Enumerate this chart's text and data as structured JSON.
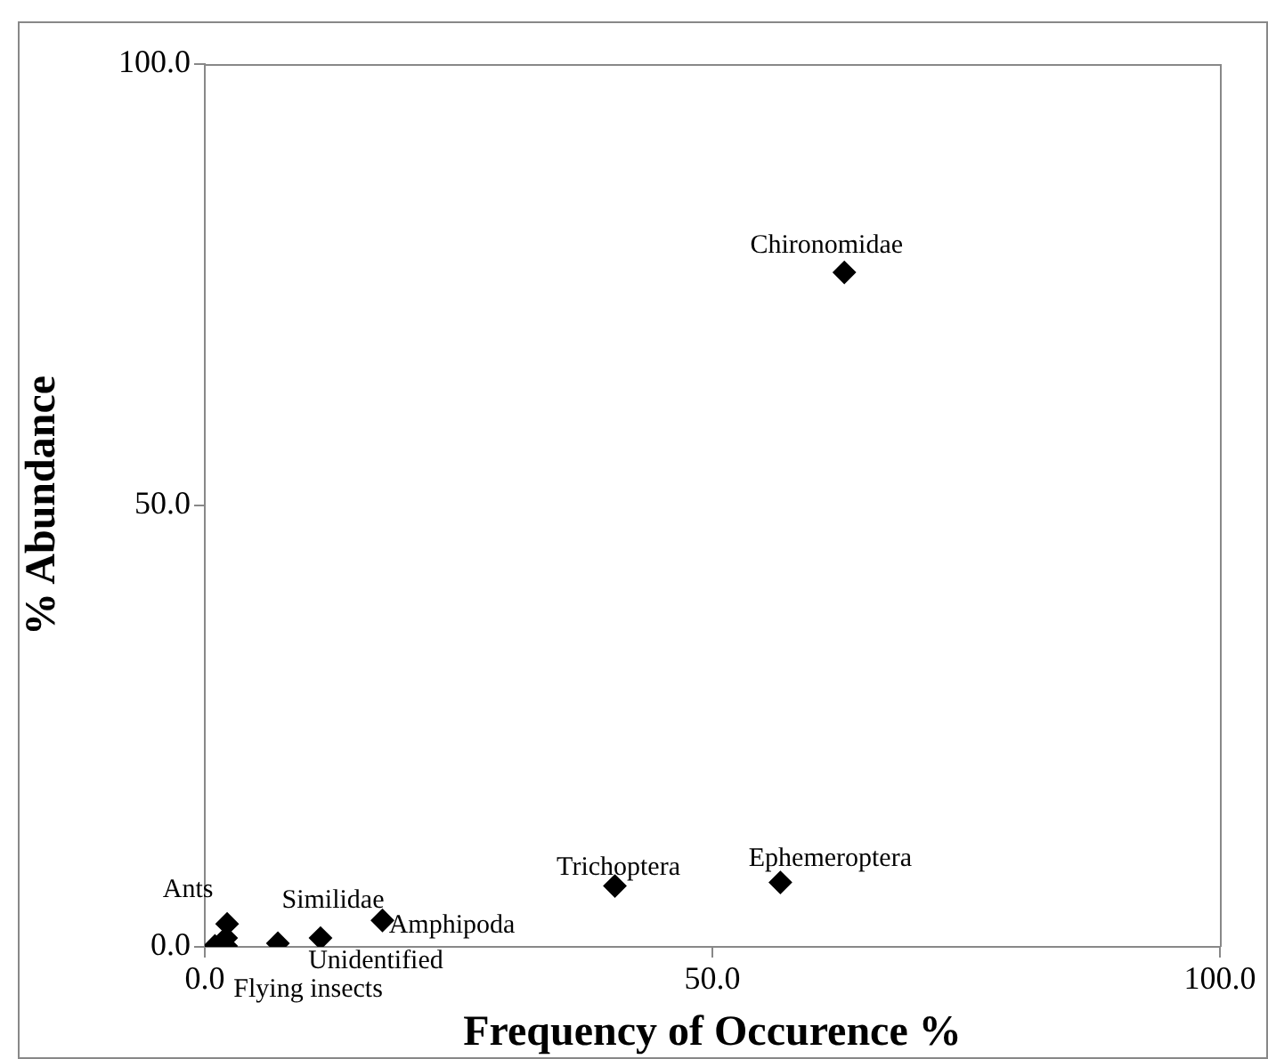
{
  "chart_data": {
    "type": "scatter",
    "xlabel": "Frequency of Occurence %",
    "ylabel": "% Abundance",
    "x": [
      63.0,
      56.7,
      40.4,
      17.5,
      11.4,
      7.2,
      2.2,
      2.1,
      2.1,
      1.0
    ],
    "values": [
      76.4,
      7.3,
      6.9,
      3.0,
      1.0,
      0.4,
      2.6,
      1.0,
      0.1,
      0.1
    ],
    "color": "#000000",
    "marker": "diamond",
    "xlim": [
      0,
      100
    ],
    "xticks": [
      {
        "value": 0,
        "label": "0.0"
      },
      {
        "value": 50,
        "label": "50.0"
      },
      {
        "value": 100,
        "label": "100.0"
      }
    ],
    "ylim": [
      0,
      100
    ],
    "yticks": [
      {
        "value": 0,
        "label": "0.0"
      },
      {
        "value": 50,
        "label": "50.0"
      },
      {
        "value": 100,
        "label": "100.0"
      }
    ],
    "grid": false,
    "legend": false,
    "annotations": [
      {
        "text": "Chironomidae",
        "x": 63.0,
        "y": 76.4
      },
      {
        "text": "Ephemeroptera",
        "x": 56.7,
        "y": 7.3
      },
      {
        "text": "Trichoptera",
        "x": 40.4,
        "y": 6.9
      },
      {
        "text": "Amphipoda",
        "x": 17.5,
        "y": 3.0
      },
      {
        "text": "Similidae",
        "x": 11.4,
        "y": 1.0
      },
      {
        "text": "Unidentified",
        "x": 11.4,
        "y": 1.0
      },
      {
        "text": "Flying insects",
        "x": 7.2,
        "y": 0.4
      },
      {
        "text": "Ants",
        "x": 2.2,
        "y": 2.6
      }
    ]
  }
}
